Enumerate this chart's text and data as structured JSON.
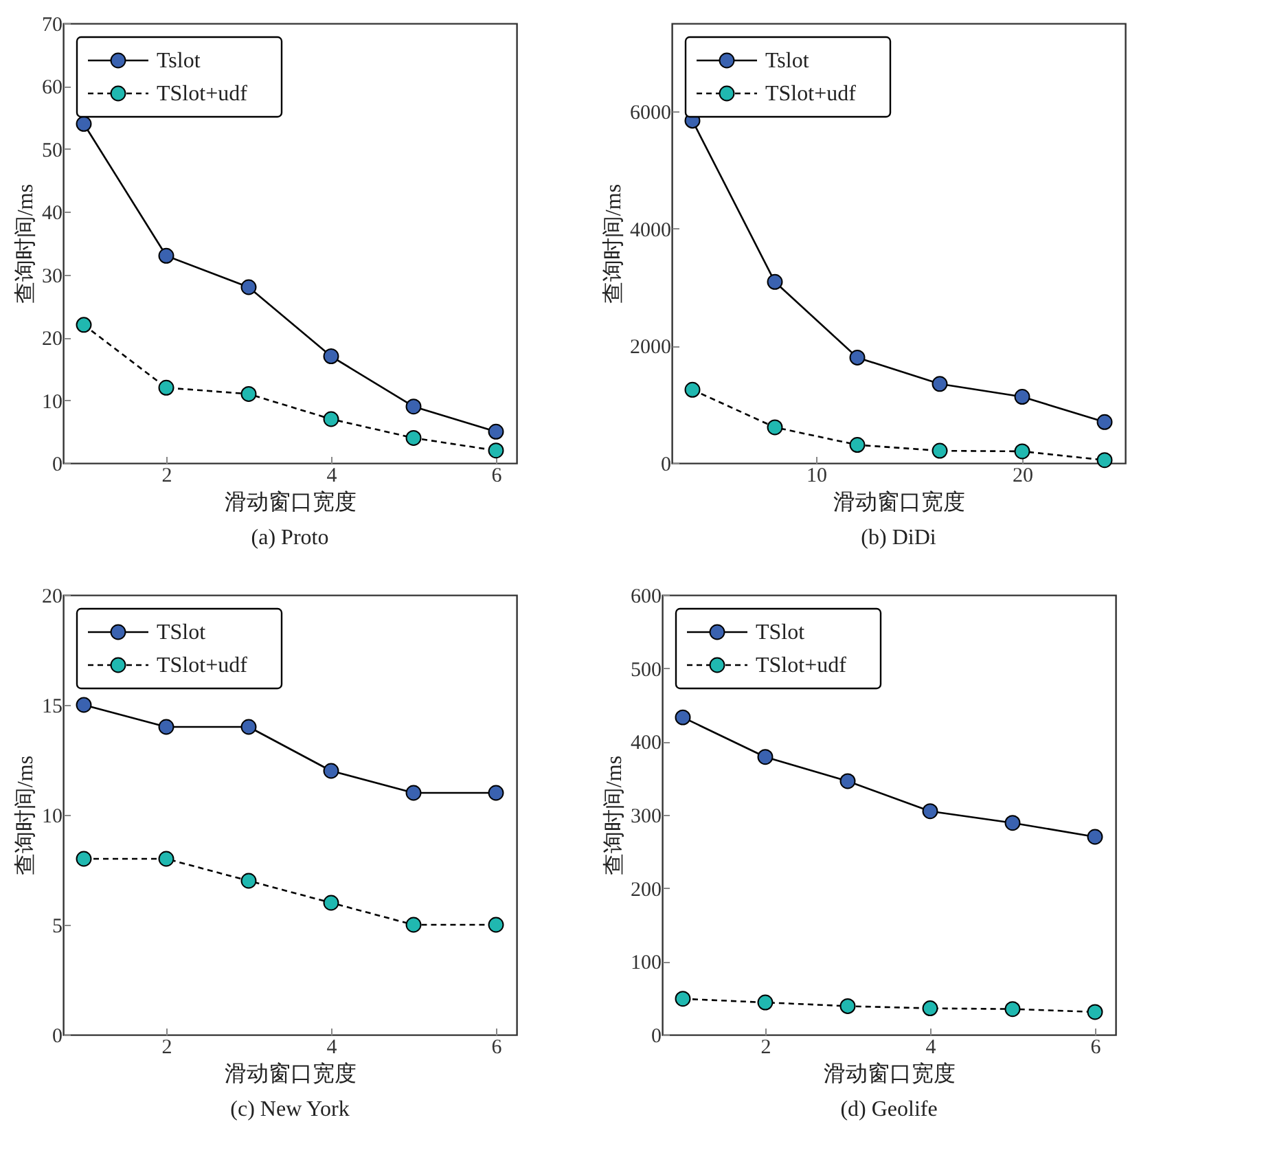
{
  "chart_data": [
    {
      "type": "line",
      "title": "(a) Proto",
      "xlabel": "滑动窗口宽度",
      "ylabel": "查询时间/ms",
      "x": [
        1,
        2,
        3,
        4,
        5,
        6
      ],
      "xlim": [
        0.75,
        6.25
      ],
      "xticks": [
        2,
        4,
        6
      ],
      "ylim": [
        0,
        70
      ],
      "yticks": [
        0,
        10,
        20,
        30,
        40,
        50,
        60,
        70
      ],
      "legend": "top left",
      "marker": "circle",
      "series": [
        {
          "name": "Tslot",
          "color": "#3a62b0",
          "line_style": "solid",
          "values": [
            54,
            33,
            28,
            17,
            9,
            5
          ]
        },
        {
          "name": "TSlot+udf",
          "color": "#20b8b0",
          "line_style": "dashed",
          "values": [
            22,
            12,
            11,
            7,
            4,
            2
          ]
        }
      ]
    },
    {
      "type": "line",
      "title": "(b) DiDi",
      "xlabel": "滑动窗口宽度",
      "ylabel": "查询时间/ms",
      "x": [
        4,
        8,
        12,
        16,
        20,
        24
      ],
      "xlim": [
        3,
        25
      ],
      "xticks": [
        10,
        20
      ],
      "ylim": [
        0,
        7500
      ],
      "yticks": [
        0,
        2000,
        4000,
        6000
      ],
      "legend": "top left",
      "marker": "circle",
      "series": [
        {
          "name": "Tslot",
          "color": "#3a62b0",
          "line_style": "solid",
          "values": [
            5840,
            3090,
            1800,
            1350,
            1130,
            700
          ]
        },
        {
          "name": "TSlot+udf",
          "color": "#20b8b0",
          "line_style": "dashed",
          "values": [
            1250,
            610,
            310,
            210,
            200,
            50
          ]
        }
      ]
    },
    {
      "type": "line",
      "title": "(c) New York",
      "xlabel": "滑动窗口宽度",
      "ylabel": "查询时间/ms",
      "x": [
        1,
        2,
        3,
        4,
        5,
        6
      ],
      "xlim": [
        0.75,
        6.25
      ],
      "xticks": [
        2,
        4,
        6
      ],
      "ylim": [
        0,
        20
      ],
      "yticks": [
        0,
        5,
        10,
        15,
        20
      ],
      "legend": "top left",
      "marker": "circle",
      "series": [
        {
          "name": "TSlot",
          "color": "#3a62b0",
          "line_style": "solid",
          "values": [
            15,
            14,
            14,
            12,
            11,
            11
          ]
        },
        {
          "name": "TSlot+udf",
          "color": "#20b8b0",
          "line_style": "dashed",
          "values": [
            8,
            8,
            7,
            6,
            5,
            5
          ]
        }
      ]
    },
    {
      "type": "line",
      "title": "(d) Geolife",
      "xlabel": "滑动窗口宽度",
      "ylabel": "查询时间/ms",
      "x": [
        1,
        2,
        3,
        4,
        5,
        6
      ],
      "xlim": [
        0.75,
        6.25
      ],
      "xticks": [
        2,
        4,
        6
      ],
      "ylim": [
        0,
        600
      ],
      "yticks": [
        0,
        100,
        200,
        300,
        400,
        500,
        600
      ],
      "legend": "top left",
      "marker": "circle",
      "series": [
        {
          "name": "TSlot",
          "color": "#3a62b0",
          "line_style": "solid",
          "values": [
            433,
            379,
            346,
            305,
            289,
            270
          ]
        },
        {
          "name": "TSlot+udf",
          "color": "#20b8b0",
          "line_style": "dashed",
          "values": [
            49,
            44,
            39,
            36,
            35,
            31
          ]
        }
      ]
    }
  ]
}
